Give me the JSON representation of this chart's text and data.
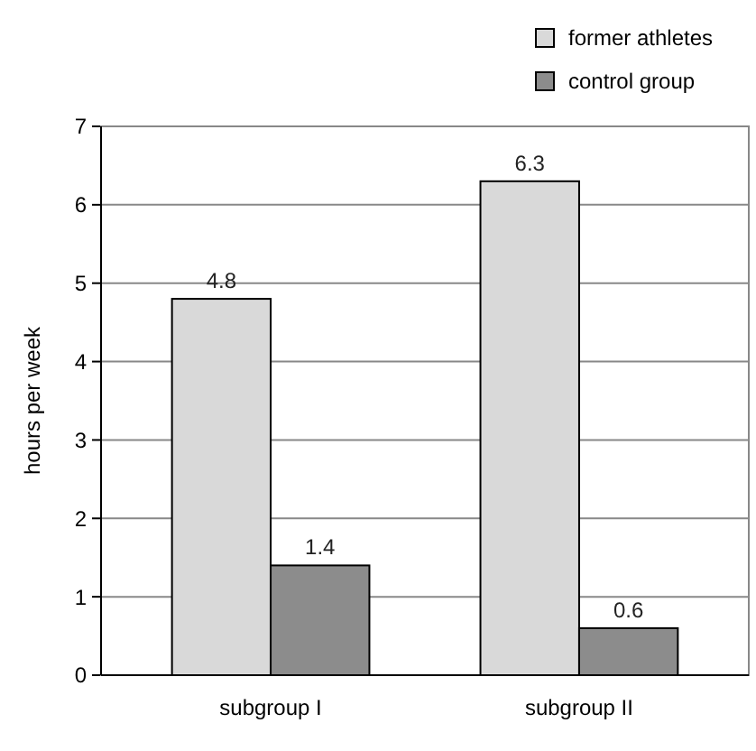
{
  "chart_data": {
    "type": "bar",
    "ylabel": "hours per week",
    "categories": [
      "subgroup I",
      "subgroup II"
    ],
    "series": [
      {
        "name": "former athletes",
        "color": "#d9d9d9",
        "values": [
          4.8,
          6.3
        ]
      },
      {
        "name": "control group",
        "color": "#8c8c8c",
        "values": [
          1.4,
          0.6
        ]
      }
    ],
    "ylim": [
      0,
      7
    ],
    "yticks": [
      0,
      1,
      2,
      3,
      4,
      5,
      6,
      7
    ],
    "grid": "y",
    "legend": "top right",
    "data_labels": true
  }
}
